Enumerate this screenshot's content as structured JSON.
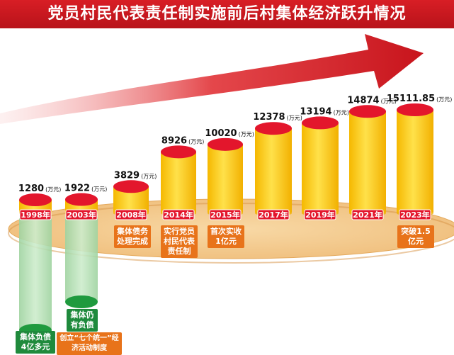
{
  "title": "党员村民代表责任制实施前后村集体经济跃升情况",
  "chart_data": {
    "type": "bar",
    "unit": "(万元)",
    "categories": [
      "1998年",
      "2003年",
      "2008年",
      "2014年",
      "2015年",
      "2017年",
      "2019年",
      "2021年",
      "2023年"
    ],
    "values": [
      1280,
      1922,
      3829,
      8926,
      10020,
      12378,
      13194,
      14874,
      15111.85
    ],
    "value_labels": [
      "1280",
      "1922",
      "3829",
      "8926",
      "10020",
      "12378",
      "13194",
      "14874",
      "15111.85"
    ],
    "debt": {
      "categories": [
        "1998年",
        "2003年"
      ],
      "notes": [
        "集体负债4亿多元",
        "集体仍有负债"
      ]
    }
  },
  "notes": {
    "y2008": "集体债务处理完成",
    "y2014": "实行党员村民代表责任制",
    "y2015": "首次实收1亿元",
    "y2023": "突破1.5亿元",
    "debt1998": "集体负债4亿多元",
    "debt2003": "集体仍有负债",
    "rules": "创立“七个统一”经济活动制度"
  },
  "colors": {
    "title_bg": "#d81e25",
    "bar_body": "#ffd200",
    "bar_top": "#e3162c",
    "debt_body": "#b5dfb5",
    "debt_bottom": "#1f9a3e",
    "platform": "#f2c98a",
    "arrow": "#d81e25",
    "note_orange": "#e8731a",
    "note_green": "#1f8a3c"
  }
}
